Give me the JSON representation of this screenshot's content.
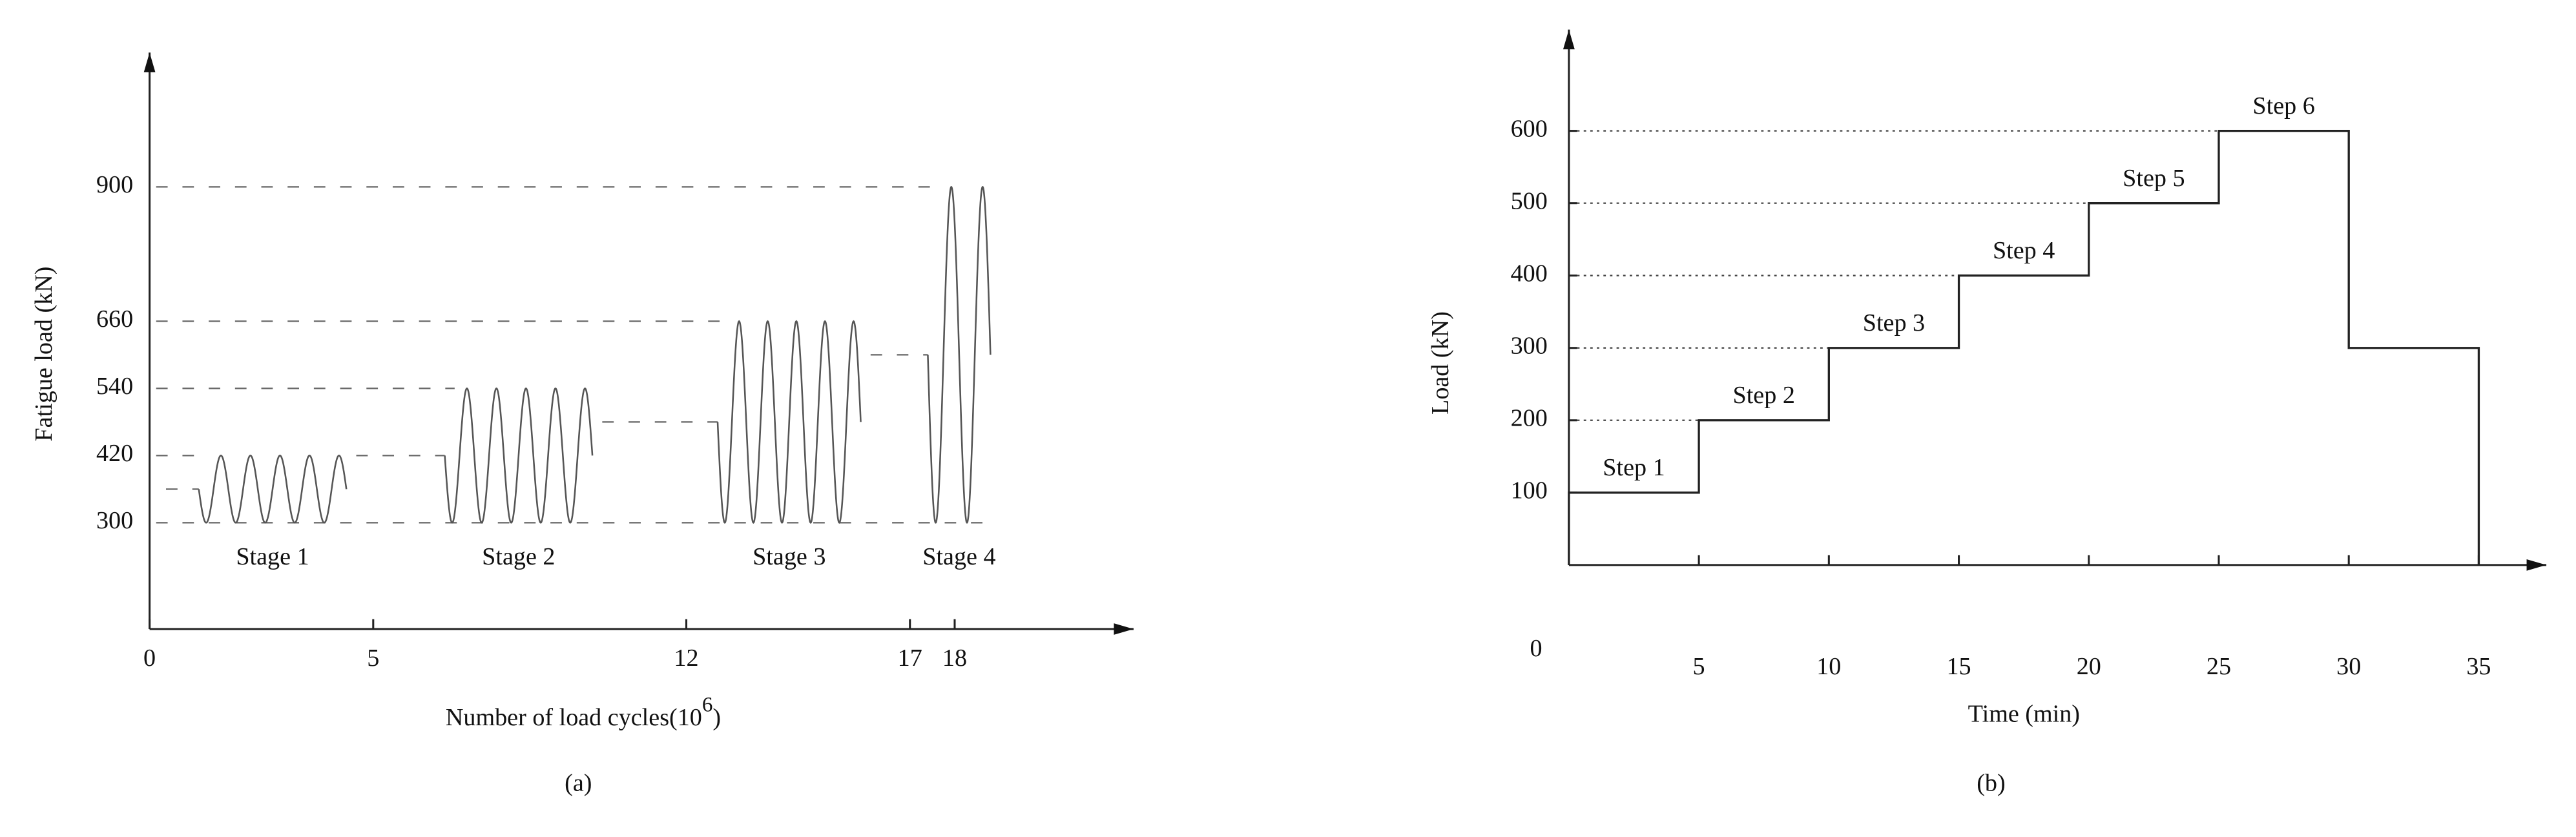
{
  "chart_data": [
    {
      "type": "cycles",
      "ylabel": "Fatigue load (kN)",
      "xlabel_parts": [
        "Number of load cycles(10",
        "6",
        ")"
      ],
      "caption": "(a)",
      "xlim": [
        0,
        22
      ],
      "ylim": [
        110,
        1140
      ],
      "xticks": [
        0,
        5,
        12,
        17,
        18
      ],
      "yticks": [
        300,
        420,
        540,
        660,
        900
      ],
      "series": [
        {
          "name": "Stage 1",
          "color": "#555555",
          "x": [
            1.1,
            4.4
          ],
          "min": 300,
          "max": 420,
          "cycles": 5
        },
        {
          "name": "Stage 2",
          "color": "#555555",
          "x": [
            6.6,
            9.9
          ],
          "min": 300,
          "max": 540,
          "cycles": 5
        },
        {
          "name": "Stage 3",
          "color": "#555555",
          "x": [
            12.7,
            15.9
          ],
          "min": 300,
          "max": 660,
          "cycles": 5
        },
        {
          "name": "Stage 4",
          "color": "#555555",
          "x": [
            17.4,
            18.8
          ],
          "min": 300,
          "max": 900,
          "cycles": 2
        }
      ]
    },
    {
      "type": "line",
      "ylabel": "Load (kN)",
      "xlabel": "Time (min)",
      "caption": "(b)",
      "xlim": [
        0,
        37.6
      ],
      "ylim": [
        0,
        740
      ],
      "xticks": [
        0,
        5,
        10,
        15,
        20,
        25,
        30,
        35
      ],
      "yticks": [
        100,
        200,
        300,
        400,
        500,
        600
      ],
      "color": "#222222",
      "x": [
        0,
        0,
        5,
        5,
        10,
        10,
        15,
        15,
        20,
        20,
        25,
        25,
        30,
        30,
        35,
        35
      ],
      "values": [
        0,
        100,
        100,
        200,
        200,
        300,
        300,
        400,
        400,
        500,
        500,
        600,
        600,
        300,
        300,
        0
      ],
      "step_labels": [
        "Step 1",
        "Step 2",
        "Step 3",
        "Step 4",
        "Step 5",
        "Step 6"
      ]
    }
  ]
}
